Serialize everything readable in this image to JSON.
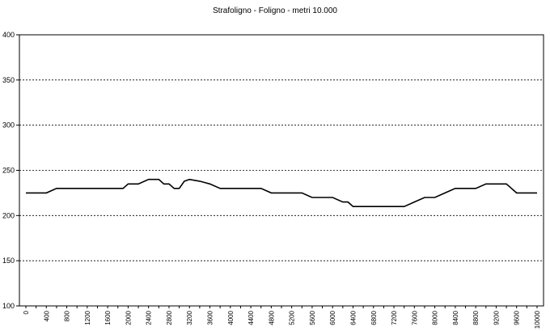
{
  "chart_data": {
    "type": "line",
    "title": "Strafoligno - Foligno - metri 10.000",
    "xlabel": "",
    "ylabel": "",
    "ylim": [
      100,
      400
    ],
    "yticks": [
      100,
      150,
      200,
      250,
      300,
      350,
      400
    ],
    "xlim": [
      0,
      10000
    ],
    "xticks": [
      0,
      400,
      800,
      1200,
      1600,
      2000,
      2400,
      2800,
      3200,
      3600,
      4000,
      4400,
      4800,
      5200,
      5600,
      6000,
      6400,
      6800,
      7200,
      7600,
      8000,
      8400,
      8800,
      9200,
      9600,
      10000
    ],
    "grid": true,
    "legend": "none",
    "series": [
      {
        "x": [
          0,
          200,
          300,
          400,
          600,
          800,
          1000,
          1200,
          1400,
          1600,
          1800,
          1900,
          2000,
          2200,
          2400,
          2600,
          2700,
          2800,
          2900,
          3000,
          3100,
          3200,
          3400,
          3600,
          3800,
          4000,
          4200,
          4400,
          4600,
          4800,
          5000,
          5200,
          5400,
          5600,
          5800,
          6000,
          6200,
          6300,
          6400,
          6600,
          6800,
          7000,
          7200,
          7400,
          7600,
          7800,
          8000,
          8200,
          8400,
          8600,
          8800,
          9000,
          9200,
          9300,
          9400,
          9500,
          9600,
          9800,
          10000
        ],
        "y": [
          225,
          225,
          225,
          225,
          230,
          230,
          230,
          230,
          230,
          230,
          230,
          230,
          235,
          235,
          240,
          240,
          235,
          235,
          230,
          230,
          238,
          240,
          238,
          235,
          230,
          230,
          230,
          230,
          230,
          225,
          225,
          225,
          225,
          220,
          220,
          220,
          215,
          215,
          210,
          210,
          210,
          210,
          210,
          210,
          215,
          220,
          220,
          225,
          230,
          230,
          230,
          235,
          235,
          235,
          235,
          230,
          225,
          225,
          225
        ]
      }
    ],
    "colors": {
      "line": "#000000",
      "grid": "#000000",
      "background": "#ffffff"
    }
  }
}
